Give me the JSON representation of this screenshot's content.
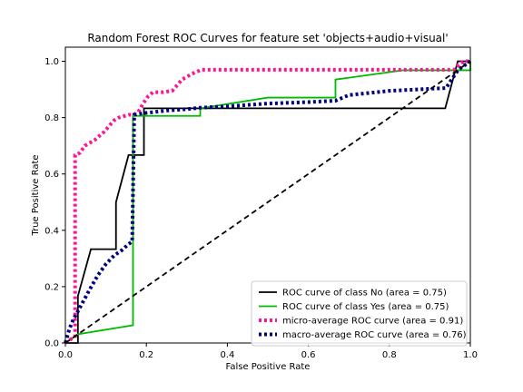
{
  "chart_data": {
    "type": "line",
    "title": "Random Forest ROC Curves for feature set 'objects+audio+visual'",
    "xlabel": "False Positive Rate",
    "ylabel": "True Positive Rate",
    "xlim": [
      0.0,
      1.0
    ],
    "ylim": [
      0.0,
      1.05
    ],
    "x_ticks": [
      "0.0",
      "0.2",
      "0.4",
      "0.6",
      "0.8",
      "1.0"
    ],
    "y_ticks": [
      "0.0",
      "0.2",
      "0.4",
      "0.6",
      "0.8",
      "1.0"
    ],
    "grid": false,
    "legend_position": "lower-right",
    "series": [
      {
        "name": "ROC curve of class No (area = 0.75)",
        "color": "#000000",
        "style": "solid",
        "x": [
          0.0,
          0.031,
          0.031,
          0.063,
          0.063,
          0.125,
          0.125,
          0.156,
          0.156,
          0.194,
          0.194,
          0.333,
          0.333,
          0.938,
          0.969,
          1.0
        ],
        "y": [
          0.0,
          0.0,
          0.167,
          0.333,
          0.333,
          0.333,
          0.5,
          0.667,
          0.667,
          0.667,
          0.833,
          0.833,
          0.833,
          0.833,
          1.0,
          1.0
        ]
      },
      {
        "name": "ROC curve of class Yes (area = 0.75)",
        "color": "#00bb00",
        "style": "solid",
        "x": [
          0.0,
          0.031,
          0.167,
          0.167,
          0.194,
          0.194,
          0.333,
          0.333,
          0.5,
          0.667,
          0.667,
          0.833,
          0.969,
          1.0,
          1.0
        ],
        "y": [
          0.0,
          0.031,
          0.063,
          0.806,
          0.806,
          0.806,
          0.806,
          0.833,
          0.871,
          0.871,
          0.935,
          0.968,
          0.968,
          0.968,
          1.0
        ]
      },
      {
        "name": "micro-average ROC curve (area = 0.91)",
        "color": "#ff1493",
        "style": "dotted",
        "x": [
          0.0,
          0.024,
          0.024,
          0.036,
          0.048,
          0.06,
          0.072,
          0.084,
          0.096,
          0.108,
          0.12,
          0.132,
          0.144,
          0.156,
          0.168,
          0.18,
          0.192,
          0.204,
          0.216,
          0.228,
          0.24,
          0.264,
          0.288,
          0.3,
          0.312,
          0.336,
          0.36,
          0.42,
          0.48,
          0.54,
          0.6,
          0.66,
          0.72,
          0.78,
          0.84,
          0.9,
          0.96,
          0.972,
          0.984,
          1.0
        ],
        "y": [
          0.0,
          0.024,
          0.667,
          0.675,
          0.7,
          0.71,
          0.72,
          0.735,
          0.75,
          0.77,
          0.79,
          0.8,
          0.805,
          0.81,
          0.81,
          0.82,
          0.85,
          0.875,
          0.89,
          0.89,
          0.89,
          0.895,
          0.935,
          0.945,
          0.955,
          0.97,
          0.97,
          0.97,
          0.97,
          0.97,
          0.97,
          0.97,
          0.97,
          0.97,
          0.97,
          0.97,
          0.97,
          0.99,
          1.0,
          1.0
        ]
      },
      {
        "name": "macro-average ROC curve (area = 0.76)",
        "color": "#00007f",
        "style": "dotted",
        "x": [
          0.0,
          0.01,
          0.02,
          0.03,
          0.045,
          0.06,
          0.08,
          0.1,
          0.12,
          0.14,
          0.155,
          0.165,
          0.17,
          0.19,
          0.22,
          0.25,
          0.3,
          0.333,
          0.4,
          0.5,
          0.6,
          0.667,
          0.7,
          0.8,
          0.94,
          0.97,
          1.0
        ],
        "y": [
          0.0,
          0.05,
          0.085,
          0.11,
          0.15,
          0.19,
          0.24,
          0.28,
          0.31,
          0.33,
          0.35,
          0.36,
          0.81,
          0.815,
          0.82,
          0.825,
          0.83,
          0.835,
          0.84,
          0.85,
          0.855,
          0.86,
          0.88,
          0.895,
          0.905,
          0.97,
          1.0
        ]
      },
      {
        "name": "",
        "color": "#000000",
        "style": "dashed",
        "x": [
          0.0,
          1.0
        ],
        "y": [
          0.0,
          1.0
        ]
      }
    ]
  }
}
